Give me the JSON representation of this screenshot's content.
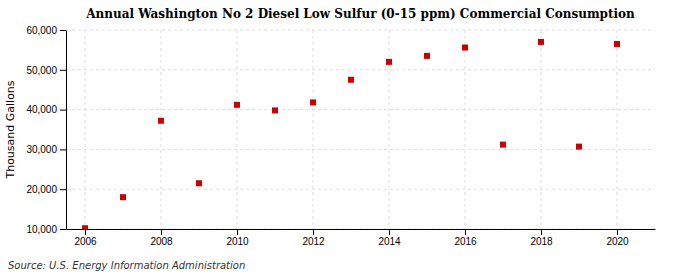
{
  "chart_data": {
    "type": "scatter",
    "title": "Annual Washington No 2 Diesel Low Sulfur (0-15 ppm) Commercial Consumption",
    "y_label": "Thousand Gallons",
    "annotations": [
      "Source: U.S. Energy Information Administration"
    ],
    "x": [
      2006,
      2007,
      2008,
      2009,
      2010,
      2011,
      2012,
      2013,
      2014,
      2015,
      2016,
      2017,
      2018,
      2019,
      2020
    ],
    "values": [
      10200,
      18000,
      37200,
      21500,
      41200,
      39800,
      41800,
      47500,
      52000,
      53500,
      55600,
      31200,
      57000,
      30700,
      56500
    ],
    "color": "#cc0000",
    "marker": "square",
    "xlim": [
      2005.5,
      2021.0
    ],
    "xticks": [
      2006,
      2008,
      2010,
      2012,
      2014,
      2016,
      2018,
      2020
    ],
    "ylim": [
      10000,
      60000
    ],
    "yticks": [
      {
        "value": 10000,
        "label": "10,000"
      },
      {
        "value": 20000,
        "label": "20,000"
      },
      {
        "value": 30000,
        "label": "30,000"
      },
      {
        "value": 40000,
        "label": "40,000"
      },
      {
        "value": 50000,
        "label": "50,000"
      },
      {
        "value": 60000,
        "label": "60,000"
      }
    ],
    "grid": true
  }
}
